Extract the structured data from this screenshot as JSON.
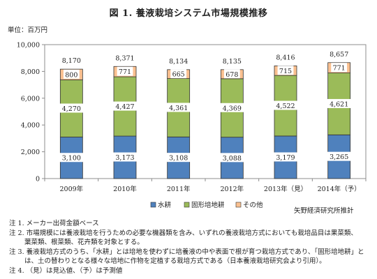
{
  "title": "図 1. 養液栽培システム市場規模推移",
  "unit_label": "単位：百万円",
  "source": "矢野経済研究所推計",
  "colors": {
    "water": "#4f81bd",
    "solid": "#9bbb59",
    "other": "#fac090"
  },
  "notes": [
    "注 1. メーカー出荷金額ベース",
    "注 2. 市場規模には養液栽培を行うための必要な機器類を含み、いずれの養液栽培方式においても栽培品目は果菜類、",
    "葉菜類、根菜類、花卉類を対象とする。",
    "注 3. 養液栽培方式のうち、「水耕」とは培地を使わずに培養液の中や表面で根が育つ栽培方式であり、「固形培地耕」と",
    "は、土の替わりとなる様々な培地に作物を定植する栽培方式である（日本養液栽培研究会より引用）。",
    "注 4. （見）は見込値、（予）は予測値"
  ],
  "chart_data": {
    "type": "bar",
    "stacked": true,
    "categories": [
      "2009年",
      "2010年",
      "2011年",
      "2012年",
      "2013年（見）",
      "2014年（予）"
    ],
    "series": [
      {
        "name": "水耕",
        "values": [
          3100,
          3173,
          3108,
          3088,
          3179,
          3265
        ]
      },
      {
        "name": "固形培地耕",
        "values": [
          4270,
          4427,
          4361,
          4369,
          4522,
          4621
        ]
      },
      {
        "name": "その他",
        "values": [
          800,
          771,
          665,
          678,
          715,
          771
        ]
      }
    ],
    "totals": [
      8170,
      8371,
      8134,
      8135,
      8416,
      8657
    ],
    "value_labels": {
      "series": [
        [
          "3,100",
          "3,173",
          "3,108",
          "3,088",
          "3,179",
          "3,265"
        ],
        [
          "4,270",
          "4,427",
          "4,361",
          "4,369",
          "4,522",
          "4,621"
        ],
        [
          "800",
          "771",
          "665",
          "678",
          "715",
          "771"
        ]
      ],
      "totals": [
        "8,170",
        "8,371",
        "8,134",
        "8,135",
        "8,416",
        "8,657"
      ]
    },
    "y_ticks": [
      0,
      2000,
      4000,
      6000,
      8000,
      10000
    ],
    "y_tick_labels": [
      "0",
      "2,000",
      "4,000",
      "6,000",
      "8,000",
      "10,000"
    ],
    "ylim": [
      0,
      10000
    ],
    "grid": false,
    "legend": "bottom"
  }
}
